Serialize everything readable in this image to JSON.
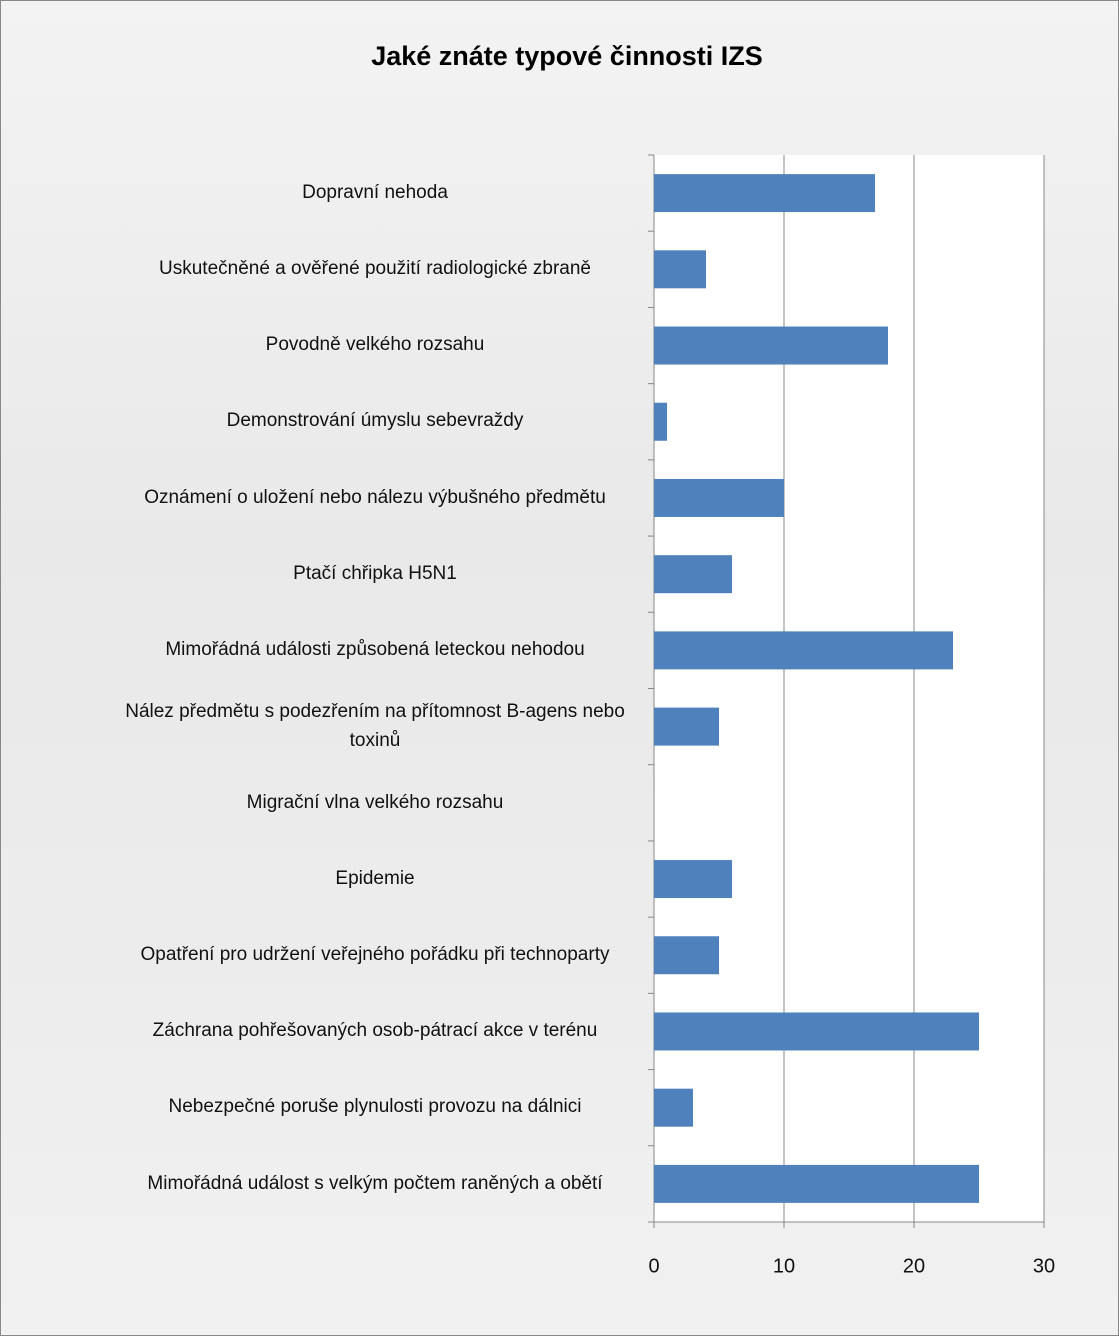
{
  "chart_data": {
    "type": "barh",
    "title": "Jaké znáte typové činnosti IZS",
    "categories": [
      "Dopravní nehoda",
      "Uskutečněné a ověřené použití radiologické zbraně",
      "Povodně velkého rozsahu",
      "Demonstrování úmyslu sebevraždy",
      "Oznámení o uložení nebo nálezu výbušného předmětu",
      "Ptačí chřipka H5N1",
      "Mimořádná události způsobená leteckou nehodou",
      "Nález předmětu s podezřením na přítomnost B-agens nebo toxinů",
      "Migrační vlna velkého rozsahu",
      "Epidemie",
      "Opatření pro udržení veřejného pořádku při technoparty",
      "Záchrana pohřešovaných osob-pátrací akce v terénu",
      "Nebezpečné poruše plynulosti provozu na dálnici",
      "Mimořádná událost s velkým počtem raněných a obětí"
    ],
    "values": [
      17,
      4,
      18,
      1,
      10,
      6,
      23,
      5,
      0,
      6,
      5,
      25,
      3,
      25
    ],
    "color": "#4f81bd",
    "xlim": [
      0,
      30
    ],
    "xticks": [
      0,
      10,
      20,
      30
    ],
    "grid": true
  }
}
